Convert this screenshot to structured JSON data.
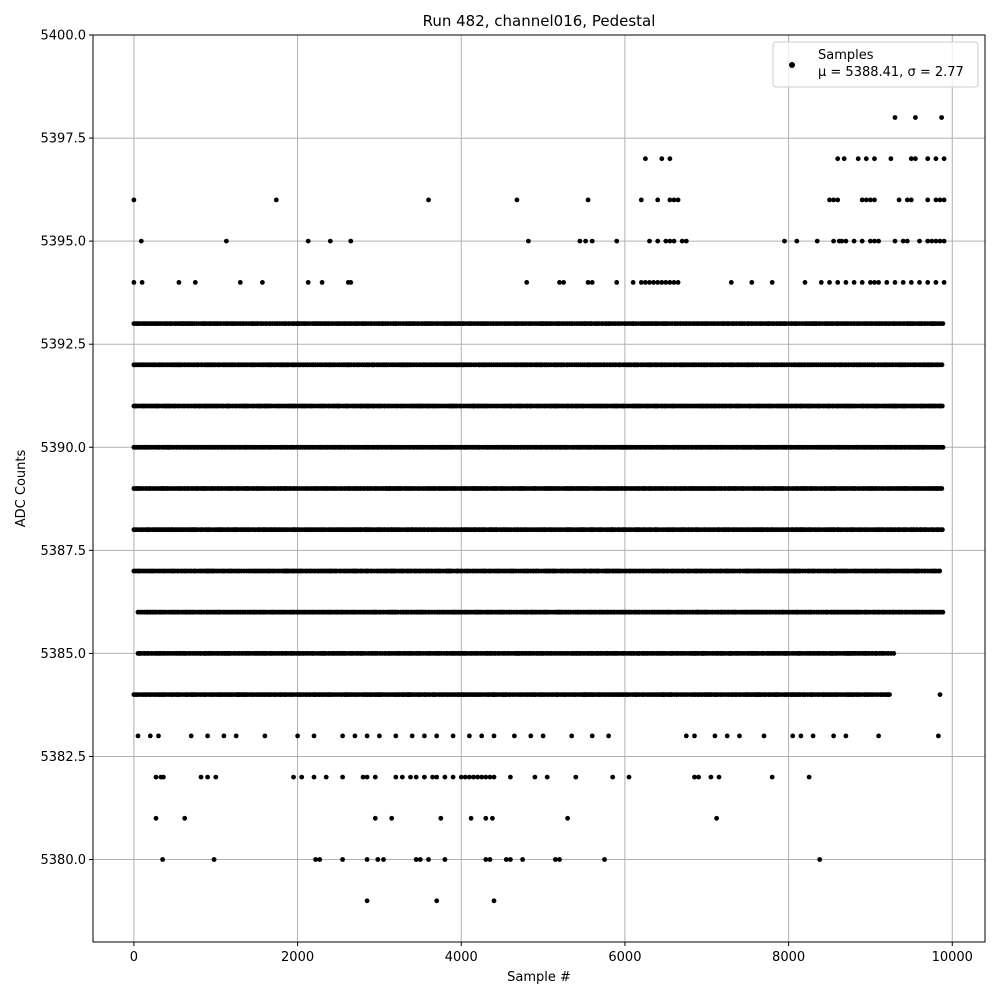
{
  "chart_data": {
    "type": "scatter",
    "title": "Run 482, channel016, Pedestal",
    "xlabel": "Sample #",
    "ylabel": "ADC Counts",
    "xlim": [
      -500,
      10400
    ],
    "ylim": [
      5378,
      5400
    ],
    "xticks": [
      0,
      2000,
      4000,
      6000,
      8000,
      10000
    ],
    "yticks": [
      5380.0,
      5382.5,
      5385.0,
      5387.5,
      5390.0,
      5392.5,
      5395.0,
      5397.5,
      5400.0
    ],
    "grid": true,
    "legend_position": "top-right",
    "point_color": "#000000",
    "series": [
      {
        "name": "Samples",
        "stats_label": "μ = 5388.41, σ = 2.77",
        "x_range": [
          0,
          9900
        ],
        "sample_count": 9900,
        "bands": [
          {
            "y": 5379,
            "x": [
              2850,
              3700,
              4400
            ]
          },
          {
            "y": 5380,
            "x": [
              350,
              980,
              2220,
              2270,
              2550,
              2850,
              2980,
              3050,
              3450,
              3500,
              3600,
              3800,
              4300,
              4350,
              4550,
              4600,
              4750,
              5150,
              5200,
              5750,
              8380
            ]
          },
          {
            "y": 5381,
            "x": [
              270,
              620,
              2950,
              3150,
              3750,
              4120,
              4300,
              4380,
              5300,
              7120
            ]
          },
          {
            "y": 5382,
            "x": [
              270,
              330,
              360,
              820,
              900,
              1000,
              1950,
              2050,
              2200,
              2350,
              2550,
              2800,
              2850,
              2950,
              3200,
              3280,
              3380,
              3450,
              3550,
              3650,
              3700,
              3800,
              3900,
              4000,
              4050,
              4100,
              4150,
              4200,
              4250,
              4300,
              4350,
              4400,
              4600,
              4900,
              5050,
              5400,
              5850,
              6050,
              6850,
              6900,
              7050,
              7150,
              7800,
              8250
            ]
          },
          {
            "y": 5383,
            "x": [
              50,
              200,
              300,
              700,
              900,
              1100,
              1250,
              1600,
              2000,
              2200,
              2550,
              2700,
              2850,
              3000,
              3200,
              3400,
              3550,
              3700,
              3900,
              4100,
              4250,
              4400,
              4650,
              4850,
              5000,
              5350,
              5600,
              5800,
              6750,
              6850,
              7100,
              7250,
              7400,
              7700,
              8050,
              8150,
              8300,
              8550,
              8700,
              9100,
              9830
            ]
          },
          {
            "y": 5384,
            "density": "dense",
            "x_from": 0,
            "x_to": 9250,
            "extra_x": [
              9850
            ]
          },
          {
            "y": 5385,
            "density": "dense",
            "x_from": 50,
            "x_to": 9300
          },
          {
            "y": 5386,
            "density": "dense",
            "x_from": 50,
            "x_to": 9900
          },
          {
            "y": 5387,
            "density": "dense",
            "x_from": 0,
            "x_to": 9850
          },
          {
            "y": 5388,
            "density": "dense",
            "x_from": 0,
            "x_to": 9900
          },
          {
            "y": 5389,
            "density": "dense",
            "x_from": 0,
            "x_to": 9900
          },
          {
            "y": 5390,
            "density": "dense",
            "x_from": 0,
            "x_to": 9900
          },
          {
            "y": 5391,
            "density": "dense",
            "x_from": 0,
            "x_to": 9900
          },
          {
            "y": 5392,
            "density": "dense",
            "x_from": 0,
            "x_to": 9900
          },
          {
            "y": 5393,
            "density": "dense",
            "x_from": 0,
            "x_to": 9900
          },
          {
            "y": 5394,
            "x": [
              0,
              100,
              550,
              750,
              1300,
              1570,
              2130,
              2300,
              2620,
              2650,
              4800,
              5200,
              5250,
              5550,
              5600,
              5900,
              6100,
              6200,
              6250,
              6300,
              6350,
              6400,
              6450,
              6500,
              6550,
              6600,
              6650,
              7300,
              7550,
              7800,
              8200,
              8400,
              8500,
              8600,
              8700,
              8800,
              8900,
              9000,
              9050,
              9100,
              9200,
              9300,
              9400,
              9500,
              9600,
              9700,
              9800,
              9900
            ]
          },
          {
            "y": 5395,
            "x": [
              90,
              1130,
              2130,
              2400,
              2650,
              4820,
              5450,
              5520,
              5600,
              5900,
              6300,
              6400,
              6500,
              6550,
              6600,
              6700,
              6750,
              7950,
              8100,
              8350,
              8550,
              8620,
              8650,
              8700,
              8800,
              8900,
              9000,
              9050,
              9100,
              9300,
              9400,
              9450,
              9600,
              9700,
              9750,
              9800,
              9850,
              9900
            ]
          },
          {
            "y": 5396,
            "x": [
              0,
              1740,
              3600,
              4680,
              5550,
              6200,
              6400,
              6550,
              6600,
              6650,
              8500,
              8550,
              8600,
              8900,
              8950,
              9000,
              9050,
              9350,
              9450,
              9500,
              9700,
              9800,
              9850,
              9900
            ]
          },
          {
            "y": 5397,
            "x": [
              6250,
              6450,
              6550,
              8600,
              8680,
              8850,
              8950,
              9050,
              9250,
              9500,
              9550,
              9700,
              9800,
              9900
            ]
          },
          {
            "y": 5398,
            "x": [
              9300,
              9550,
              9870
            ]
          }
        ]
      }
    ]
  }
}
